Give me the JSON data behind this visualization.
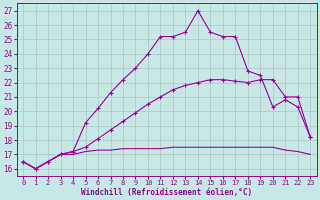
{
  "xlabel": "Windchill (Refroidissement éolien,°C)",
  "background_color": "#c8e8e8",
  "grid_color": "#b0cccc",
  "line_color": "#990099",
  "xlim": [
    -0.5,
    23.5
  ],
  "ylim": [
    15.5,
    27.5
  ],
  "xticks": [
    0,
    1,
    2,
    3,
    4,
    5,
    6,
    7,
    8,
    9,
    10,
    11,
    12,
    13,
    14,
    15,
    16,
    17,
    18,
    19,
    20,
    21,
    22,
    23
  ],
  "yticks": [
    16,
    17,
    18,
    19,
    20,
    21,
    22,
    23,
    24,
    25,
    26,
    27
  ],
  "series1_x": [
    0,
    1,
    2,
    3,
    4,
    5,
    6,
    7,
    8,
    9,
    10,
    11,
    12,
    13,
    14,
    15,
    16,
    17,
    18,
    19,
    20,
    21,
    22,
    23
  ],
  "series1_y": [
    16.5,
    16.0,
    16.5,
    17.0,
    17.0,
    17.2,
    17.3,
    17.3,
    17.4,
    17.4,
    17.4,
    17.4,
    17.5,
    17.5,
    17.5,
    17.5,
    17.5,
    17.5,
    17.5,
    17.5,
    17.5,
    17.3,
    17.2,
    17.0
  ],
  "series2_x": [
    0,
    1,
    2,
    3,
    4,
    5,
    6,
    7,
    8,
    9,
    10,
    11,
    12,
    13,
    14,
    15,
    16,
    17,
    18,
    19,
    20,
    21,
    22,
    23
  ],
  "series2_y": [
    16.5,
    16.0,
    16.5,
    17.0,
    17.2,
    17.5,
    18.1,
    18.7,
    19.3,
    19.9,
    20.5,
    21.0,
    21.5,
    21.8,
    22.0,
    22.2,
    22.2,
    22.1,
    22.0,
    22.2,
    22.2,
    21.0,
    21.0,
    18.2
  ],
  "series3_x": [
    0,
    1,
    2,
    3,
    4,
    5,
    6,
    7,
    8,
    9,
    10,
    11,
    12,
    13,
    14,
    15,
    16,
    17,
    18,
    19,
    20,
    21,
    22,
    23
  ],
  "series3_y": [
    16.5,
    16.0,
    16.5,
    17.0,
    17.2,
    19.2,
    20.2,
    21.3,
    22.2,
    23.0,
    24.0,
    25.2,
    25.2,
    25.5,
    27.0,
    25.5,
    25.2,
    25.2,
    22.8,
    22.5,
    20.3,
    20.8,
    20.3,
    18.2
  ]
}
